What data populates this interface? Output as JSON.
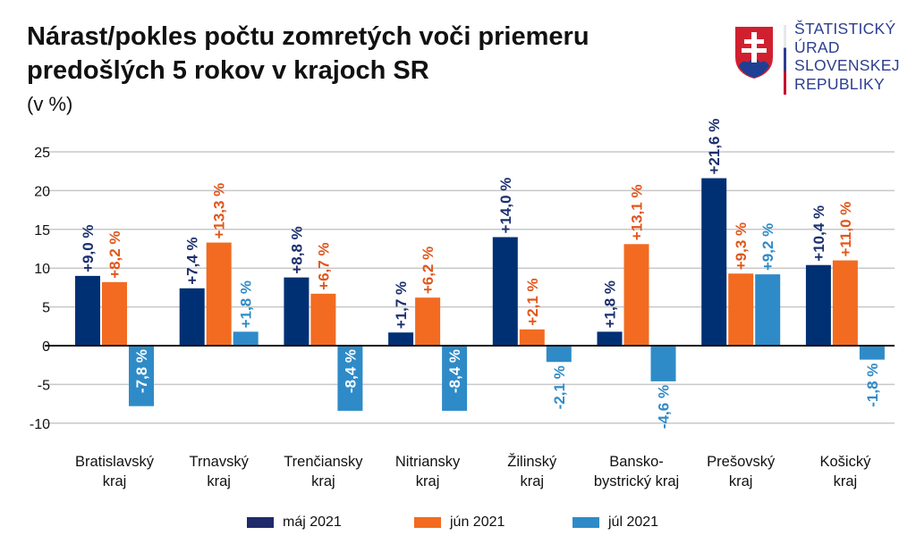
{
  "title_line1": "Nárast/pokles počtu zomretých voči priemeru",
  "title_line2": "predošlých 5 rokov v krajoch SR",
  "unit": "(v %)",
  "logo": {
    "lines": [
      "ŠTATISTICKÝ",
      "ÚRAD",
      "SLOVENSKEJ",
      "REPUBLIKY"
    ]
  },
  "chart_data": {
    "type": "bar",
    "title": "Nárast/pokles počtu zomretých voči priemeru predošlých 5 rokov v krajoch SR",
    "ylabel": "(v %)",
    "ylim": [
      -10,
      25
    ],
    "yticks": [
      "25",
      "20",
      "15",
      "10",
      "5",
      "0",
      "-5",
      "-10"
    ],
    "categories": [
      [
        "Bratislavský",
        "kraj"
      ],
      [
        "Trnavský",
        "kraj"
      ],
      [
        "Trenčiansky",
        "kraj"
      ],
      [
        "Nitriansky",
        "kraj"
      ],
      [
        "Žilinský",
        "kraj"
      ],
      [
        "Bansko-",
        "bystrický kraj"
      ],
      [
        "Prešovský",
        "kraj"
      ],
      [
        "Košický",
        "kraj"
      ]
    ],
    "series": [
      {
        "name": "máj 2021",
        "color": "#003074",
        "labelColor": "#1b2f6e",
        "values": [
          9.0,
          7.4,
          8.8,
          1.7,
          14.0,
          1.8,
          21.6,
          10.4
        ],
        "labels": [
          "+9,0 %",
          "+7,4 %",
          "+8,8 %",
          "+1,7 %",
          "+14,0 %",
          "+1,8 %",
          "+21,6 %",
          "+10,4 %"
        ]
      },
      {
        "name": "jún 2021",
        "color": "#f26b21",
        "labelColor": "#e0561a",
        "values": [
          8.2,
          13.3,
          6.7,
          6.2,
          2.1,
          13.1,
          9.3,
          11.0
        ],
        "labels": [
          "+8,2 %",
          "+13,3 %",
          "+6,7 %",
          "+6,2 %",
          "+2,1 %",
          "+13,1 %",
          "+9,3 %",
          "+11,0 %"
        ]
      },
      {
        "name": "júl 2021",
        "color": "#2e8bc8",
        "labelColor": "#2e8bc8",
        "values": [
          -7.8,
          1.8,
          -8.4,
          -8.4,
          -2.1,
          -4.6,
          9.2,
          -1.8
        ],
        "labels": [
          "-7,8 %",
          "+1,8 %",
          "-8,4 %",
          "-8,4 %",
          "-2,1 %",
          "-4,6 %",
          "+9,2 %",
          "-1,8 %"
        ]
      }
    ],
    "legend": "bottom",
    "grid": true
  }
}
